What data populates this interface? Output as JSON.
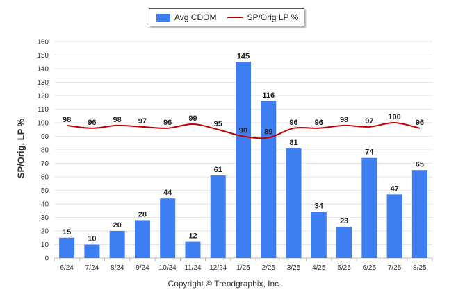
{
  "chart_data": {
    "type": "bar",
    "categories": [
      "6/24",
      "7/24",
      "8/24",
      "9/24",
      "10/24",
      "11/24",
      "12/24",
      "1/25",
      "2/25",
      "3/25",
      "4/25",
      "5/25",
      "6/25",
      "7/25",
      "8/25"
    ],
    "series": [
      {
        "name": "Avg CDOM",
        "type": "bar",
        "color": "#3d7ff2",
        "values": [
          15,
          10,
          20,
          28,
          44,
          12,
          61,
          145,
          116,
          81,
          34,
          23,
          74,
          47,
          65
        ]
      },
      {
        "name": "SP/Orig LP %",
        "type": "line",
        "color": "#c00000",
        "values": [
          98,
          96,
          98,
          97,
          96,
          99,
          95,
          90,
          89,
          96,
          96,
          98,
          97,
          100,
          96
        ]
      }
    ],
    "ylabel": "SP/Orig. LP %",
    "ylim": [
      0,
      160
    ],
    "yticks": [
      0,
      10,
      20,
      30,
      40,
      50,
      60,
      70,
      80,
      90,
      100,
      110,
      120,
      130,
      140,
      150,
      160
    ],
    "grid": true,
    "legend_position": "top-center"
  },
  "legend": {
    "bar_label": "Avg CDOM",
    "line_label": "SP/Orig LP %"
  },
  "footer": {
    "copyright": "Copyright © Trendgraphix, Inc."
  }
}
